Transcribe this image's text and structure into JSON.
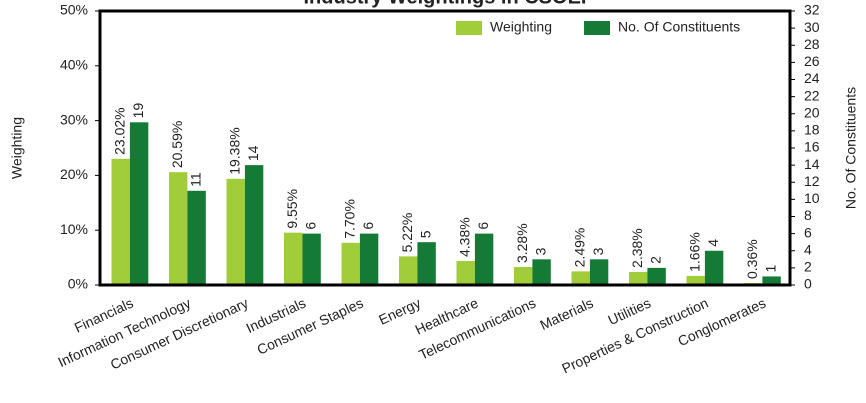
{
  "chart_data": {
    "type": "bar",
    "title": "Industry Weightings in CSOEI",
    "y_label": "Weighting",
    "y2_label": "No. Of Constituents",
    "categories": [
      "Financials",
      "Information Technology",
      "Consumer Discretionary",
      "Industrials",
      "Consumer Staples",
      "Energy",
      "Healthcare",
      "Telecommunications",
      "Materials",
      "Utilities",
      "Properties & Construction",
      "Conglomerates"
    ],
    "series": [
      {
        "name": "Weighting",
        "color": "#a2cd3a",
        "axis": "y",
        "values": [
          23.02,
          20.59,
          19.38,
          9.55,
          7.7,
          5.22,
          4.38,
          3.28,
          2.49,
          2.38,
          1.66,
          0.36
        ],
        "value_labels": [
          "23.02%",
          "20.59%",
          "19.38%",
          "9.55%",
          "7.70%",
          "5.22%",
          "4.38%",
          "3.28%",
          "2.49%",
          "2.38%",
          "1.66%",
          "0.36%"
        ]
      },
      {
        "name": "No. Of Constituents",
        "color": "#157a35",
        "axis": "y2",
        "values": [
          19,
          11,
          14,
          6,
          6,
          5,
          6,
          3,
          3,
          2,
          4,
          1
        ]
      }
    ],
    "ylim": [
      0,
      50
    ],
    "yticks": [
      {
        "value": 0,
        "label": "0%"
      },
      {
        "value": 10,
        "label": "10%"
      },
      {
        "value": 20,
        "label": "20%"
      },
      {
        "value": 30,
        "label": "30%"
      },
      {
        "value": 40,
        "label": "40%"
      },
      {
        "value": 50,
        "label": "50%"
      }
    ],
    "y2lim": [
      0,
      32
    ],
    "y2ticks": [
      0,
      2,
      4,
      6,
      8,
      10,
      12,
      14,
      16,
      18,
      20,
      22,
      24,
      26,
      28,
      30,
      32
    ],
    "legend": "top-right"
  }
}
